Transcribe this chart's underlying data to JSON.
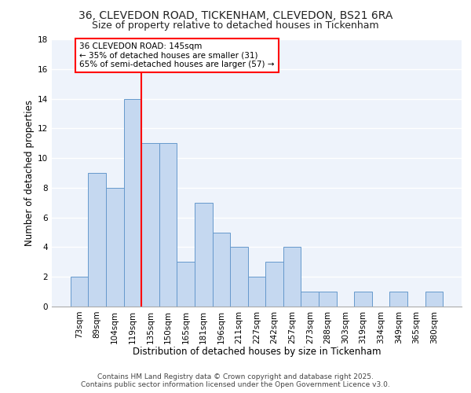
{
  "title_line1": "36, CLEVEDON ROAD, TICKENHAM, CLEVEDON, BS21 6RA",
  "title_line2": "Size of property relative to detached houses in Tickenham",
  "xlabel": "Distribution of detached houses by size in Tickenham",
  "ylabel": "Number of detached properties",
  "bins": [
    "73sqm",
    "89sqm",
    "104sqm",
    "119sqm",
    "135sqm",
    "150sqm",
    "165sqm",
    "181sqm",
    "196sqm",
    "211sqm",
    "227sqm",
    "242sqm",
    "257sqm",
    "273sqm",
    "288sqm",
    "303sqm",
    "319sqm",
    "334sqm",
    "349sqm",
    "365sqm",
    "380sqm"
  ],
  "values": [
    2,
    9,
    8,
    14,
    11,
    11,
    3,
    7,
    5,
    4,
    2,
    3,
    4,
    1,
    1,
    0,
    1,
    0,
    1,
    0,
    1
  ],
  "bar_color": "#c5d8f0",
  "bar_edge_color": "#6699cc",
  "vline_x_index": 4,
  "vline_color": "red",
  "annotation_text": "36 CLEVEDON ROAD: 145sqm\n← 35% of detached houses are smaller (31)\n65% of semi-detached houses are larger (57) →",
  "annotation_box_color": "white",
  "annotation_box_edge_color": "red",
  "ylim": [
    0,
    18
  ],
  "yticks": [
    0,
    2,
    4,
    6,
    8,
    10,
    12,
    14,
    16,
    18
  ],
  "background_color": "#eef3fb",
  "grid_color": "#ffffff",
  "footer_line1": "Contains HM Land Registry data © Crown copyright and database right 2025.",
  "footer_line2": "Contains public sector information licensed under the Open Government Licence v3.0.",
  "title_fontsize": 10,
  "subtitle_fontsize": 9,
  "axis_label_fontsize": 8.5,
  "tick_fontsize": 7.5,
  "annotation_fontsize": 7.5,
  "footer_fontsize": 6.5
}
